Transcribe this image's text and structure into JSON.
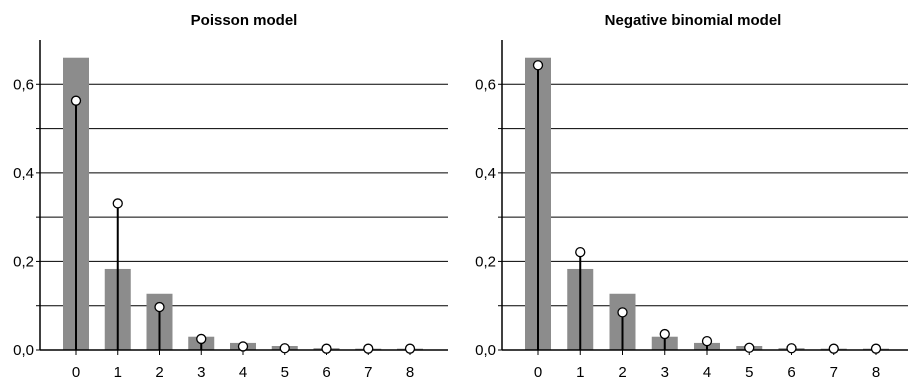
{
  "chart_data": [
    {
      "type": "bar",
      "title": "Poisson model",
      "xlabel": "",
      "ylabel": "",
      "categories": [
        "0",
        "1",
        "2",
        "3",
        "4",
        "5",
        "6",
        "7",
        "8"
      ],
      "ylim": [
        0,
        0.7
      ],
      "yticks": [
        "0,0",
        "0,2",
        "0,4",
        "0,6"
      ],
      "grid": true,
      "series": [
        {
          "kind": "bar",
          "values": [
            0.66,
            0.183,
            0.127,
            0.03,
            0.016,
            0.009,
            0.004,
            0.003,
            0.003
          ]
        },
        {
          "kind": "lollipop",
          "values": [
            0.563,
            0.331,
            0.097,
            0.025,
            0.008,
            0.004,
            0.003,
            0.003,
            0.003
          ]
        }
      ]
    },
    {
      "type": "bar",
      "title": "Negative binomial model",
      "xlabel": "",
      "ylabel": "",
      "categories": [
        "0",
        "1",
        "2",
        "3",
        "4",
        "5",
        "6",
        "7",
        "8"
      ],
      "ylim": [
        0,
        0.7
      ],
      "yticks": [
        "0,0",
        "0,2",
        "0,4",
        "0,6"
      ],
      "grid": true,
      "series": [
        {
          "kind": "bar",
          "values": [
            0.66,
            0.183,
            0.127,
            0.03,
            0.016,
            0.009,
            0.004,
            0.003,
            0.003
          ]
        },
        {
          "kind": "lollipop",
          "values": [
            0.643,
            0.221,
            0.085,
            0.036,
            0.02,
            0.005,
            0.004,
            0.003,
            0.003
          ]
        }
      ]
    }
  ],
  "colors": {
    "bar": "#8c8c8c",
    "stem": "#000000",
    "marker_fill": "#ffffff",
    "grid": "#000000"
  }
}
